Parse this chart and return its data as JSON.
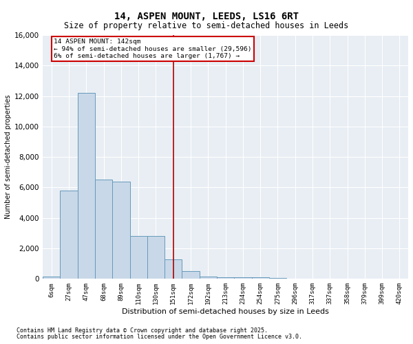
{
  "title": "14, ASPEN MOUNT, LEEDS, LS16 6RT",
  "subtitle": "Size of property relative to semi-detached houses in Leeds",
  "xlabel": "Distribution of semi-detached houses by size in Leeds",
  "ylabel": "Number of semi-detached properties",
  "footnote1": "Contains HM Land Registry data © Crown copyright and database right 2025.",
  "footnote2": "Contains public sector information licensed under the Open Government Licence v3.0.",
  "annotation_line1": "14 ASPEN MOUNT: 142sqm",
  "annotation_line2": "← 94% of semi-detached houses are smaller (29,596)",
  "annotation_line3": "6% of semi-detached houses are larger (1,767) →",
  "bar_color": "#c8d8e8",
  "bar_edge_color": "#6699bb",
  "vline_color": "#aa0000",
  "annotation_box_edge_color": "#cc0000",
  "grid_color": "#ffffff",
  "bg_color": "#e8eef4",
  "categories": [
    "6sqm",
    "27sqm",
    "47sqm",
    "68sqm",
    "89sqm",
    "110sqm",
    "130sqm",
    "151sqm",
    "172sqm",
    "192sqm",
    "213sqm",
    "234sqm",
    "254sqm",
    "275sqm",
    "296sqm",
    "317sqm",
    "337sqm",
    "358sqm",
    "379sqm",
    "399sqm",
    "420sqm"
  ],
  "values": [
    170,
    5800,
    12200,
    6500,
    6400,
    2800,
    2800,
    1300,
    500,
    150,
    120,
    90,
    100,
    50,
    30,
    20,
    10,
    5,
    3,
    2,
    2
  ],
  "vline_index": 7.0,
  "ylim": [
    0,
    16000
  ],
  "yticks": [
    0,
    2000,
    4000,
    6000,
    8000,
    10000,
    12000,
    14000,
    16000
  ]
}
